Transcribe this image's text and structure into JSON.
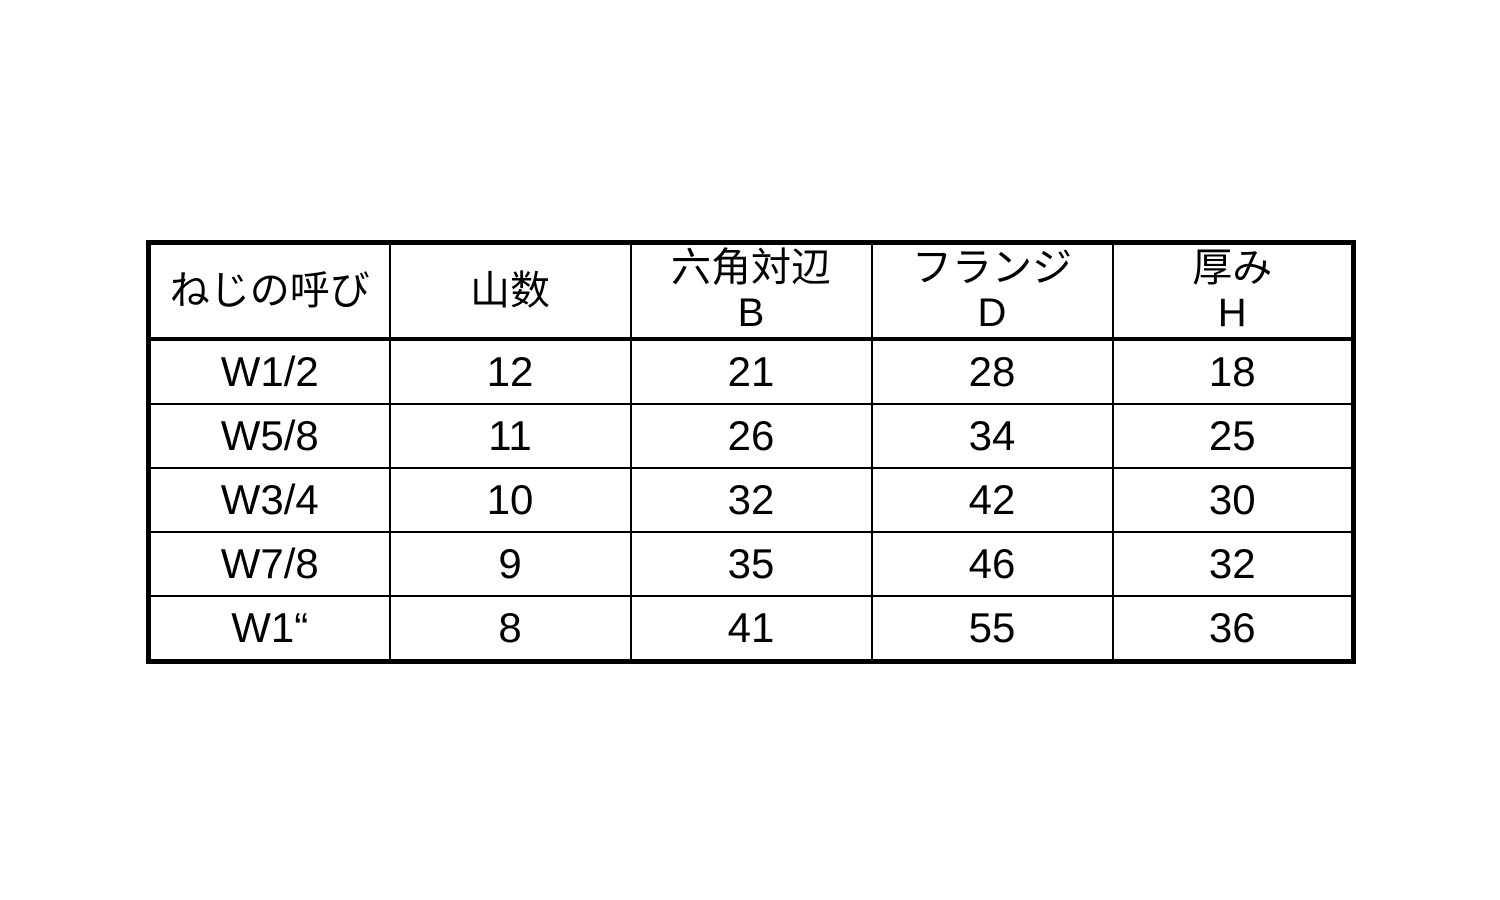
{
  "page": {
    "background": "#ffffff"
  },
  "table": {
    "colors": {
      "border": "#000000",
      "text": "#000000",
      "background": "#ffffff"
    },
    "columns": [
      {
        "title": "ねじの呼び",
        "sub": ""
      },
      {
        "title": "山数",
        "sub": ""
      },
      {
        "title": "六角対辺",
        "sub": "B"
      },
      {
        "title": "フランジ",
        "sub": "D"
      },
      {
        "title": "厚み",
        "sub": "H"
      }
    ],
    "rows": [
      {
        "cells": [
          "W1/2",
          "12",
          "21",
          "28",
          "18"
        ]
      },
      {
        "cells": [
          "W5/8",
          "11",
          "26",
          "34",
          "25"
        ]
      },
      {
        "cells": [
          "W3/4",
          "10",
          "32",
          "42",
          "30"
        ]
      },
      {
        "cells": [
          "W7/8",
          "9",
          "35",
          "46",
          "32"
        ]
      },
      {
        "cells": [
          "W1“",
          "8",
          "41",
          "55",
          "36"
        ]
      }
    ]
  }
}
